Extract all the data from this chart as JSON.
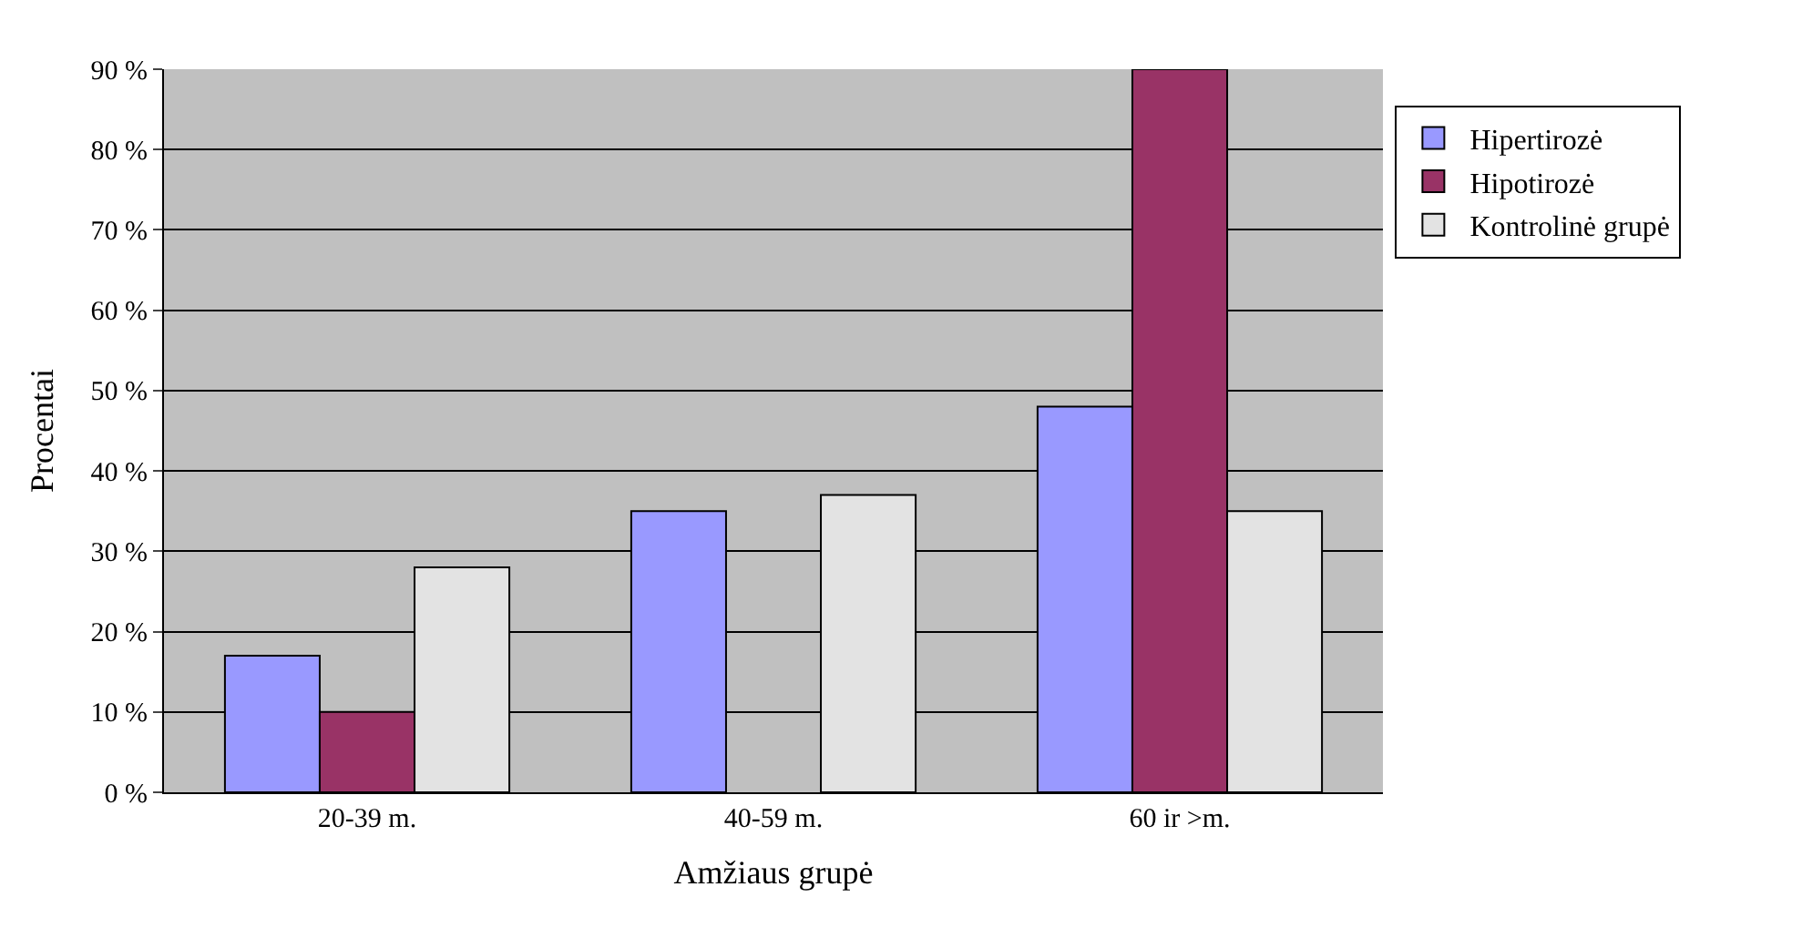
{
  "chart_data": {
    "type": "bar",
    "xlabel": "Amžiaus grupė",
    "ylabel": "Procentai",
    "categories": [
      "20-39 m.",
      "40-59 m.",
      "60 ir >m."
    ],
    "series": [
      {
        "name": "Hipertirozė",
        "color": "#9999ff",
        "values": [
          17,
          35,
          48
        ]
      },
      {
        "name": "Hipotirozė",
        "color": "#993366",
        "values": [
          10,
          null,
          90
        ]
      },
      {
        "name": "Kontrolinė grupė",
        "color": "#e3e3e3",
        "values": [
          28,
          37,
          35
        ]
      }
    ],
    "ylim": [
      0,
      90
    ],
    "yticks": [
      {
        "value": 0,
        "label": "0 %"
      },
      {
        "value": 10,
        "label": "10 %"
      },
      {
        "value": 20,
        "label": "20 %"
      },
      {
        "value": 30,
        "label": "30 %"
      },
      {
        "value": 40,
        "label": "40 %"
      },
      {
        "value": 50,
        "label": "50 %"
      },
      {
        "value": 60,
        "label": "60 %"
      },
      {
        "value": 70,
        "label": "70 %"
      },
      {
        "value": 80,
        "label": "80 %"
      },
      {
        "value": 90,
        "label": "90 %"
      }
    ],
    "grid": "y",
    "legend": "right"
  }
}
